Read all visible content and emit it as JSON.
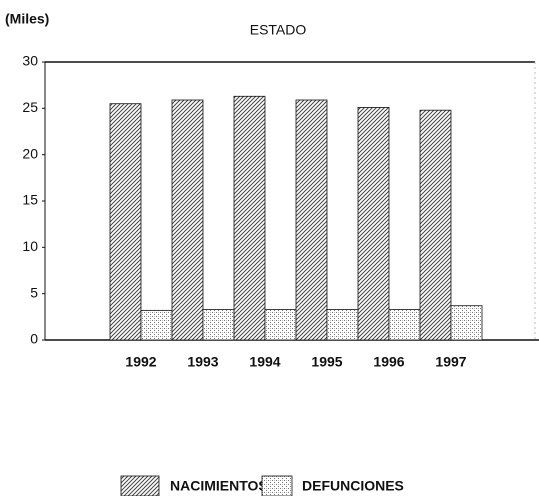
{
  "chart_data": {
    "type": "bar",
    "title": "ESTADO",
    "y_label": "(Miles)",
    "categories": [
      "1992",
      "1993",
      "1994",
      "1995",
      "1996",
      "1997"
    ],
    "series": [
      {
        "name": "NACIMIENTOS",
        "color": "#444444",
        "pattern": "hatch",
        "values": [
          25.5,
          25.9,
          26.3,
          25.9,
          25.1,
          24.8
        ]
      },
      {
        "name": "DEFUNCIONES",
        "color": "#777777",
        "pattern": "dots",
        "values": [
          3.2,
          3.3,
          3.3,
          3.3,
          3.3,
          3.7
        ]
      }
    ],
    "ylim": [
      0,
      30
    ],
    "yticks": [
      0,
      5,
      10,
      15,
      20,
      25,
      30
    ],
    "grid": false,
    "legend": "bottom"
  }
}
